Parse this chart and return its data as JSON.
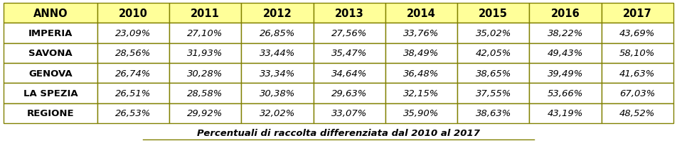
{
  "header": [
    "ANNO",
    "2010",
    "2011",
    "2012",
    "2013",
    "2014",
    "2015",
    "2016",
    "2017"
  ],
  "rows": [
    [
      "IMPERIA",
      "23,09%",
      "27,10%",
      "26,85%",
      "27,56%",
      "33,76%",
      "35,02%",
      "38,22%",
      "43,69%"
    ],
    [
      "SAVONA",
      "28,56%",
      "31,93%",
      "33,44%",
      "35,47%",
      "38,49%",
      "42,05%",
      "49,43%",
      "58,10%"
    ],
    [
      "GENOVA",
      "26,74%",
      "30,28%",
      "33,34%",
      "34,64%",
      "36,48%",
      "38,65%",
      "39,49%",
      "41,63%"
    ],
    [
      "LA SPEZIA",
      "26,51%",
      "28,58%",
      "30,38%",
      "29,63%",
      "32,15%",
      "37,55%",
      "53,66%",
      "67,03%"
    ],
    [
      "REGIONE",
      "26,53%",
      "29,92%",
      "32,02%",
      "33,07%",
      "35,90%",
      "38,63%",
      "43,19%",
      "48,52%"
    ]
  ],
  "caption": "Percentuali di raccolta differenziata dal 2010 al 2017",
  "header_bg": "#FFFF99",
  "cell_bg": "#FFFFFF",
  "border_color": "#808000",
  "text_color": "#000000",
  "fig_width": 9.52,
  "fig_height": 2.03,
  "dpi": 100,
  "header_fontsize": 10.5,
  "cell_fontsize": 9.5,
  "caption_fontsize": 9.5,
  "col_widths_raw": [
    1.3,
    1.0,
    1.0,
    1.0,
    1.0,
    1.0,
    1.0,
    1.0,
    1.0
  ]
}
